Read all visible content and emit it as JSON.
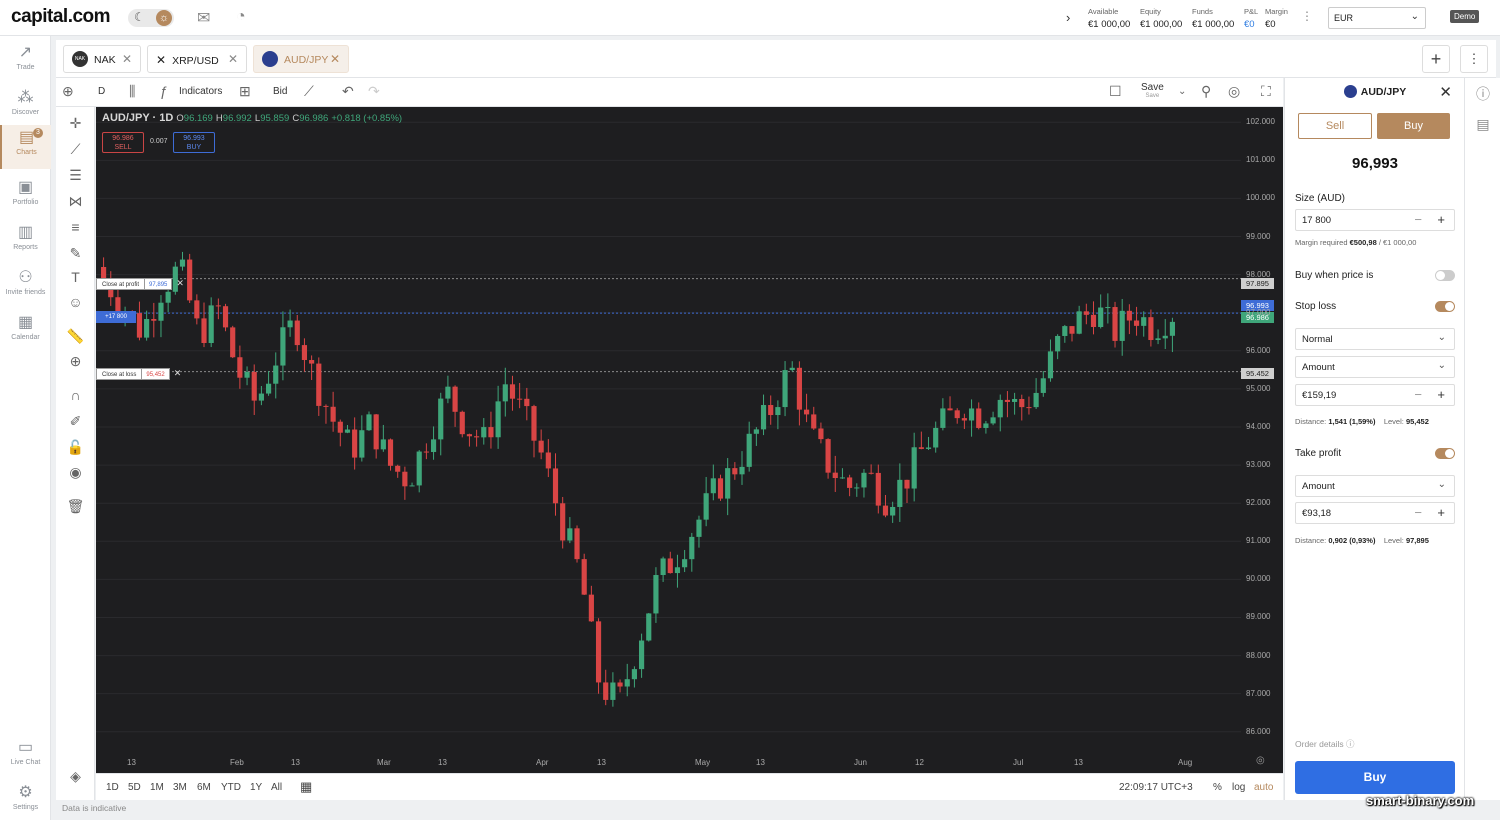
{
  "topbar": {
    "logo": "capital.com",
    "account": [
      {
        "label": "Available",
        "value": "€1 000,00"
      },
      {
        "label": "Equity",
        "value": "€1 000,00"
      },
      {
        "label": "Funds",
        "value": "€1 000,00"
      },
      {
        "label": "P&L",
        "value": "€0"
      },
      {
        "label": "Margin",
        "value": "€0"
      }
    ],
    "currency": "EUR",
    "mode": "Demo"
  },
  "leftnav": {
    "items": [
      {
        "label": "Trade",
        "icon": "trend-icon"
      },
      {
        "label": "Discover",
        "icon": "network-icon"
      },
      {
        "label": "Charts",
        "icon": "chart-icon",
        "badge": "3"
      },
      {
        "label": "Portfolio",
        "icon": "briefcase-icon"
      },
      {
        "label": "Reports",
        "icon": "report-icon"
      },
      {
        "label": "Invite friends",
        "icon": "people-icon"
      },
      {
        "label": "Calendar",
        "icon": "calendar-icon"
      }
    ],
    "bottom": [
      {
        "label": "Live Chat",
        "icon": "chat-icon"
      },
      {
        "label": "Settings",
        "icon": "gear-icon"
      }
    ]
  },
  "tabs": [
    {
      "label": "NAK",
      "chip": "NAK"
    },
    {
      "label": "XRP/USD"
    },
    {
      "label": "AUD/JPY",
      "active": true
    }
  ],
  "toolbar": {
    "interval": "D",
    "indicators": "Indicators",
    "price_type": "Bid",
    "save": "Save",
    "save_sub": "Save"
  },
  "chart": {
    "symbol": "AUD/JPY · 1D",
    "open": "96.169",
    "high": "96.992",
    "low": "95.859",
    "close": "96.986",
    "change": "+0.818 (+0.85%)",
    "sell_price": "96.986",
    "sell_label": "SELL",
    "buy_price": "96.993",
    "buy_label": "BUY",
    "spread": "0.007",
    "take_profit_label": "Close at profit",
    "take_profit_value": "97,895",
    "stop_loss_label": "Close at loss",
    "stop_loss_value": "95,452",
    "position_label": "+17 800",
    "tag_tp": "97.895",
    "tag_buy": "96.993",
    "tag_sell": "96.986",
    "tag_sl": "95.452",
    "y_ticks": [
      "102.000",
      "101.000",
      "100.000",
      "99.000",
      "98.000",
      "97.000",
      "96.000",
      "95.000",
      "94.000",
      "93.000",
      "92.000",
      "91.000",
      "90.000",
      "89.000",
      "88.000",
      "87.000",
      "86.000"
    ],
    "x_ticks": [
      "13",
      "Feb",
      "13",
      "Mar",
      "13",
      "Apr",
      "13",
      "May",
      "13",
      "Jun",
      "12",
      "Jul",
      "13",
      "Aug"
    ],
    "ylim": [
      85.6,
      102.4
    ]
  },
  "rangebar": {
    "ranges": [
      "1D",
      "5D",
      "1M",
      "3M",
      "6M",
      "YTD",
      "1Y",
      "All"
    ],
    "time": "22:09:17 UTC+3",
    "percent": "%",
    "log": "log",
    "auto": "auto"
  },
  "footnote": "Data is indicative",
  "panel": {
    "title": "AUD/JPY",
    "sell": "Sell",
    "buy": "Buy",
    "price": "96,993",
    "size_label": "Size (AUD)",
    "size_value": "17 800",
    "margin_label": "Margin required",
    "margin_value": "€500,98",
    "margin_total": "/ €1 000,00",
    "buy_when_label": "Buy when price is",
    "stop_loss_label": "Stop loss",
    "sl_type": "Normal",
    "sl_mode": "Amount",
    "sl_amount": "€159,19",
    "sl_distance_label": "Distance:",
    "sl_distance": "1,541 (1,59%)",
    "sl_level_label": "Level:",
    "sl_level": "95,452",
    "take_profit_label": "Take profit",
    "tp_mode": "Amount",
    "tp_amount": "€93,18",
    "tp_distance_label": "Distance:",
    "tp_distance": "0,902 (0,93%)",
    "tp_level_label": "Level:",
    "tp_level": "97,895",
    "order_details": "Order details",
    "main_buy": "Buy"
  },
  "watermark": "smart-binary.com",
  "colors": {
    "accent": "#b5895e",
    "up": "#3fa67a",
    "down": "#d94545",
    "buy": "#2f6ee3"
  },
  "chart_data": {
    "type": "candlestick",
    "x": [
      "13",
      "Feb",
      "13",
      "Mar",
      "13",
      "Apr",
      "13",
      "May",
      "13",
      "Jun",
      "12",
      "Jul",
      "13",
      "Aug"
    ],
    "ylim": [
      85.6,
      102.4
    ],
    "closes": [
      97.9,
      97.2,
      96.5,
      97.6,
      98.2,
      96.4,
      97.1,
      95.5,
      94.6,
      95.8,
      96.8,
      95.3,
      94.2,
      93.4,
      94.1,
      93.0,
      92.6,
      93.8,
      94.9,
      94.0,
      93.6,
      95.2,
      94.3,
      93.2,
      91.5,
      90.1,
      87.2,
      86.8,
      88.3,
      90.0,
      90.6,
      91.4,
      92.3,
      92.9,
      93.7,
      94.5,
      95.6,
      93.8,
      93.0,
      92.4,
      92.8,
      92.1,
      92.6,
      93.5,
      94.1,
      94.6,
      94.3,
      94.8,
      94.5,
      95.0,
      96.2,
      96.8,
      97.1,
      96.5,
      97.0,
      96.6,
      96.986
    ]
  }
}
